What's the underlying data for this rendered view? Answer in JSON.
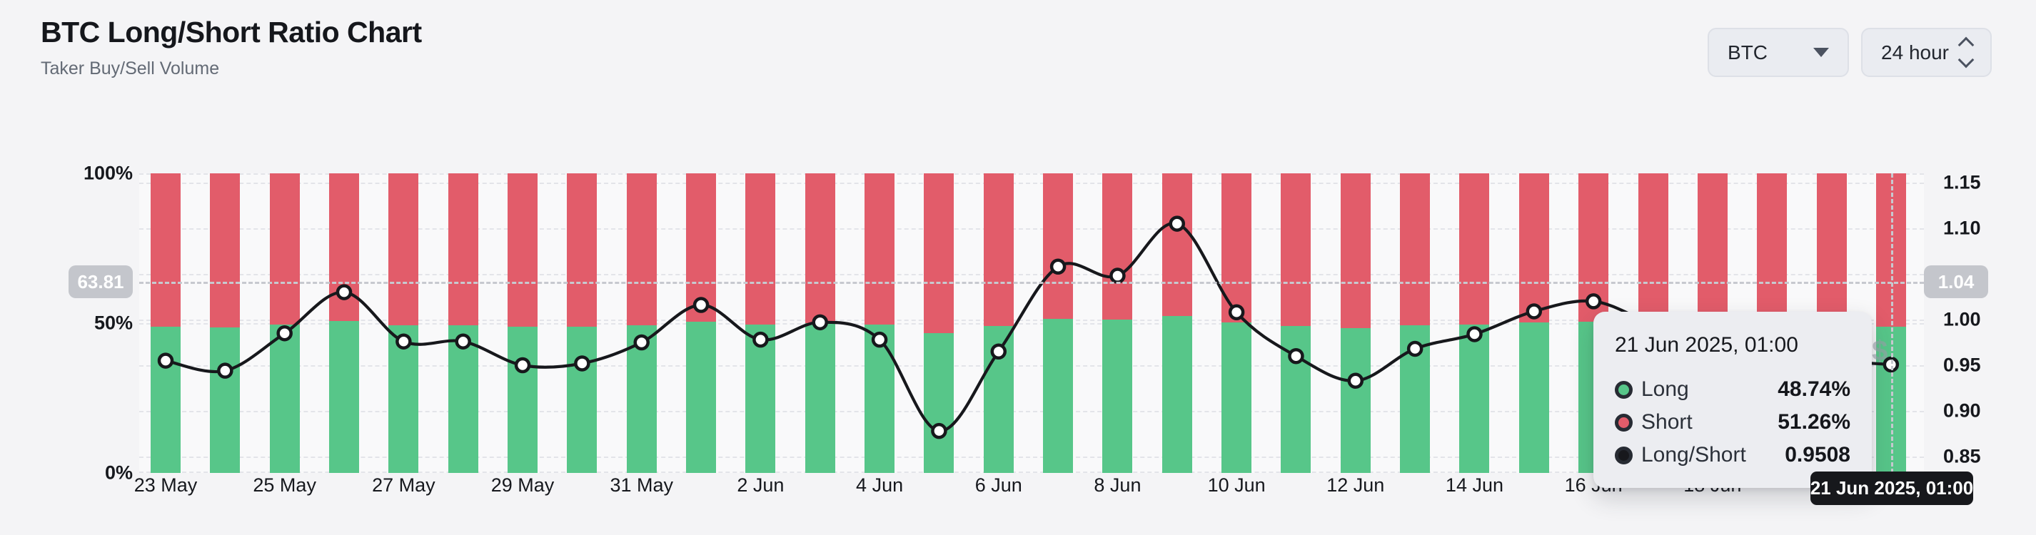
{
  "header": {
    "title": "BTC Long/Short Ratio Chart",
    "subtitle": "Taker Buy/Sell Volume"
  },
  "controls": {
    "symbol_select": {
      "value": "BTC"
    },
    "interval_select": {
      "value": "24 hour"
    }
  },
  "colors": {
    "long_green": "#57c689",
    "short_red": "#e25c6a",
    "ratio_line": "#17181c",
    "crosshair_badge_bg": "#c4c6cc",
    "tooltip_bg": "#ecedf1",
    "page_bg": "#f4f4f6"
  },
  "chart_data": {
    "type": "stacked-bar+line",
    "title": "BTC Long/Short Ratio Chart",
    "categories": [
      "23 May",
      "24 May",
      "25 May",
      "26 May",
      "27 May",
      "28 May",
      "29 May",
      "30 May",
      "31 May",
      "1 Jun",
      "2 Jun",
      "3 Jun",
      "4 Jun",
      "5 Jun",
      "6 Jun",
      "7 Jun",
      "8 Jun",
      "9 Jun",
      "10 Jun",
      "11 Jun",
      "12 Jun",
      "13 Jun",
      "14 Jun",
      "15 Jun",
      "16 Jun",
      "17 Jun",
      "18 Jun",
      "19 Jun",
      "20 Jun",
      "21 Jun"
    ],
    "xtick_labels": [
      "23 May",
      "25 May",
      "27 May",
      "29 May",
      "31 May",
      "2 Jun",
      "4 Jun",
      "6 Jun",
      "8 Jun",
      "10 Jun",
      "12 Jun",
      "14 Jun",
      "16 Jun",
      "18 Jun"
    ],
    "series": [
      {
        "name": "Long",
        "type": "bar",
        "unit": "%",
        "color": "#57c689",
        "values": [
          48.85,
          48.56,
          49.62,
          50.74,
          49.39,
          49.39,
          48.72,
          48.77,
          49.37,
          50.4,
          49.44,
          49.92,
          49.44,
          46.75,
          49.11,
          51.41,
          51.17,
          52.49,
          50.2,
          48.98,
          48.27,
          49.19,
          49.6,
          50.22,
          50.5,
          49.87,
          49.37,
          49.03,
          48.85,
          48.74
        ]
      },
      {
        "name": "Short",
        "type": "bar",
        "unit": "%",
        "color": "#e25c6a",
        "values": [
          51.15,
          51.44,
          50.38,
          49.26,
          50.61,
          50.61,
          51.28,
          51.23,
          50.63,
          49.6,
          50.56,
          50.08,
          50.56,
          53.25,
          50.89,
          48.59,
          48.83,
          47.51,
          49.8,
          51.02,
          51.73,
          50.81,
          50.4,
          49.78,
          49.5,
          50.13,
          50.63,
          50.97,
          51.15,
          51.26
        ]
      },
      {
        "name": "Long/Short",
        "type": "line",
        "color": "#17181c",
        "values": [
          0.955,
          0.944,
          0.985,
          1.03,
          0.976,
          0.976,
          0.95,
          0.952,
          0.975,
          1.016,
          0.978,
          0.997,
          0.978,
          0.878,
          0.965,
          1.058,
          1.048,
          1.105,
          1.008,
          0.96,
          0.933,
          0.968,
          0.984,
          1.009,
          1.02,
          0.995,
          0.975,
          0.962,
          0.955,
          0.9508
        ]
      }
    ],
    "left_axis": {
      "ticks": [
        "100%",
        "50%",
        "0%"
      ],
      "values": [
        100,
        50,
        0
      ],
      "range": [
        0,
        100
      ]
    },
    "right_axis": {
      "ticks": [
        "1.15",
        "1.10",
        "1.00",
        "0.95",
        "0.90",
        "0.85"
      ],
      "tick_values": [
        1.15,
        1.1,
        1.0,
        0.95,
        0.9,
        0.85
      ],
      "gridline_values": [
        1.15,
        1.1,
        1.05,
        1.0,
        0.95,
        0.9,
        0.85
      ],
      "range": [
        0.834,
        1.154
      ]
    },
    "grid": "dashed",
    "legend_position": "tooltip-only"
  },
  "crosshair": {
    "left_badge": "63.81",
    "right_badge": "1.04",
    "percent_value": 63.81,
    "hover_index": 29,
    "x_badge": "21 Jun 2025, 01:00"
  },
  "tooltip": {
    "title": "21 Jun 2025, 01:00",
    "rows": [
      {
        "label": "Long",
        "value": "48.74%"
      },
      {
        "label": "Short",
        "value": "51.26%"
      },
      {
        "label": "Long/Short",
        "value": "0.9508"
      }
    ]
  },
  "watermark": "$"
}
